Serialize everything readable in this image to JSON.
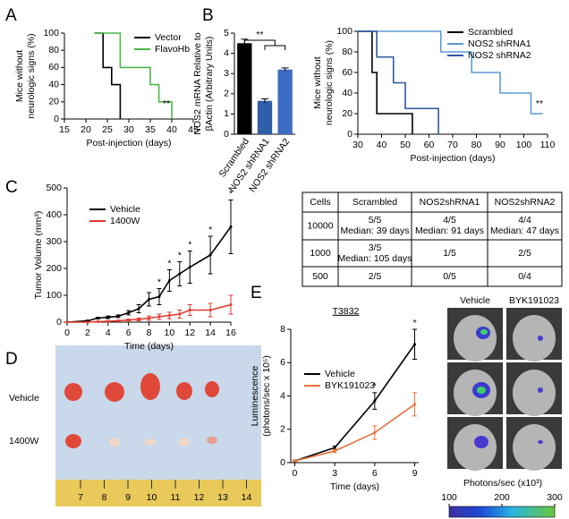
{
  "panel_labels": [
    "A",
    "B",
    "C",
    "D",
    "E"
  ],
  "chart_data": [
    {
      "type": "step",
      "ylabel": [
        "Mice without",
        "neurologic signs (%)"
      ],
      "xlabel": "Post-injection (days)",
      "xlim": [
        15,
        45
      ],
      "xticks": [
        15,
        20,
        25,
        30,
        35,
        40,
        45
      ],
      "ylim": [
        0,
        100
      ],
      "yticks": [
        0,
        20,
        40,
        60,
        80,
        100
      ],
      "series": [
        {
          "name": "Vector",
          "color": "#000000",
          "x": [
            22,
            24,
            26,
            28
          ],
          "values": [
            100,
            60,
            40,
            0
          ]
        },
        {
          "name": "FlavoHb",
          "color": "#4cb848",
          "x": [
            22,
            28,
            35,
            37,
            40
          ],
          "values": [
            100,
            60,
            40,
            20,
            0
          ]
        }
      ],
      "annotation": "**"
    },
    {
      "type": "bar",
      "ylabel": [
        "NOS2 mRNA Relative to",
        "βActin (Arbitrary Units)"
      ],
      "categories": [
        "Scrambled",
        "NOS2 shRNA1",
        "NOS2 shRNA2"
      ],
      "values": [
        4.5,
        1.65,
        3.2
      ],
      "errors": [
        0.2,
        0.1,
        0.08
      ],
      "colors": [
        "#000000",
        "#2f5ea8",
        "#3d6cc4"
      ],
      "ylim": [
        0,
        5
      ],
      "yticks": [
        0,
        1,
        2,
        3,
        4,
        5
      ],
      "annotation": "**"
    },
    {
      "type": "step",
      "ylabel": [
        "Mice without",
        "neurologic signs (%)"
      ],
      "xlabel": "Post-injection (days)",
      "xlim": [
        30,
        110
      ],
      "xticks": [
        30,
        40,
        50,
        60,
        70,
        80,
        90,
        100,
        110
      ],
      "ylim": [
        0,
        100
      ],
      "yticks": [
        0,
        20,
        40,
        60,
        80,
        100
      ],
      "series": [
        {
          "name": "Scrambled",
          "color": "#000000",
          "x": [
            30,
            36,
            38,
            53
          ],
          "values": [
            100,
            60,
            20,
            0
          ]
        },
        {
          "name": "NOS2 shRNA1",
          "color": "#5b9bd5",
          "x": [
            30,
            65,
            78,
            90,
            103,
            108
          ],
          "values": [
            100,
            80,
            60,
            40,
            20,
            20
          ]
        },
        {
          "name": "NOS2 shRNA2",
          "color": "#2e5aa0",
          "x": [
            30,
            38,
            45,
            50,
            64
          ],
          "values": [
            100,
            75,
            50,
            25,
            0
          ]
        }
      ],
      "annotation": "**"
    },
    {
      "type": "line",
      "ylabel": [
        "Tumor Volume (mm³)"
      ],
      "xlabel": "Time (days)",
      "xlim": [
        0,
        16
      ],
      "xticks": [
        0,
        2,
        4,
        6,
        8,
        10,
        12,
        14,
        16
      ],
      "ylim": [
        0,
        500
      ],
      "yticks": [
        0,
        100,
        200,
        300,
        400,
        500
      ],
      "x": [
        0,
        2,
        3,
        4,
        5,
        6,
        7,
        8,
        9,
        10,
        11,
        12,
        14,
        16
      ],
      "series": [
        {
          "name": "Vehicle",
          "color": "#000000",
          "values": [
            0,
            5,
            15,
            18,
            22,
            35,
            50,
            85,
            95,
            155,
            180,
            205,
            250,
            355
          ],
          "errors": [
            0,
            2,
            3,
            5,
            5,
            8,
            15,
            25,
            30,
            40,
            45,
            60,
            70,
            100
          ]
        },
        {
          "name": "1400W",
          "color": "#e0392b",
          "values": [
            0,
            0,
            2,
            3,
            5,
            8,
            10,
            15,
            20,
            25,
            30,
            45,
            45,
            65
          ],
          "errors": [
            0,
            0,
            1,
            2,
            2,
            3,
            5,
            8,
            10,
            12,
            15,
            20,
            25,
            35
          ]
        }
      ],
      "significant": [
        false,
        false,
        false,
        false,
        false,
        false,
        false,
        false,
        true,
        true,
        true,
        true,
        true,
        true
      ],
      "sig_label": "*"
    },
    {
      "type": "line",
      "title": "T3832",
      "ylabel": [
        "Luminescence",
        "(photons/sec x 10⁵)"
      ],
      "xlabel": "Time (days)",
      "xlim": [
        -0.3,
        9.3
      ],
      "xticks": [
        0,
        3,
        6,
        9
      ],
      "ylim": [
        0,
        8
      ],
      "yticks": [
        0,
        2,
        4,
        6,
        8
      ],
      "x": [
        0,
        3,
        6,
        9
      ],
      "series": [
        {
          "name": "Vehicle",
          "color": "#000000",
          "values": [
            0.1,
            0.9,
            3.7,
            7.1
          ],
          "errors": [
            0.05,
            0.1,
            0.5,
            0.9
          ]
        },
        {
          "name": "BYK191023",
          "color": "#e8703a",
          "values": [
            0.1,
            0.7,
            1.8,
            3.5
          ],
          "errors": [
            0.05,
            0.1,
            0.4,
            0.7
          ]
        }
      ],
      "significant": [
        false,
        false,
        true,
        true
      ],
      "sig_label": "*"
    }
  ],
  "table": {
    "header": [
      "Cells",
      "Scrambled",
      "NOS2shRNA1",
      "NOS2shRNA2"
    ],
    "rows": [
      [
        [
          "10000"
        ],
        [
          "5/5",
          "Median: 39 days"
        ],
        [
          "4/5",
          "Median: 91 days"
        ],
        [
          "4/4",
          "Median: 47 days"
        ]
      ],
      [
        [
          "1000"
        ],
        [
          "3/5",
          "Median: 105 days"
        ],
        [
          "1/5"
        ],
        [
          "2/5"
        ]
      ],
      [
        [
          "500"
        ],
        [
          "2/5"
        ],
        [
          "0/5"
        ],
        [
          "0/4"
        ]
      ]
    ]
  },
  "photo": {
    "row_labels": [
      "Vehicle",
      "1400W"
    ],
    "ruler_labels": [
      "7",
      "8",
      "9",
      "10",
      "11",
      "12",
      "13",
      "14"
    ]
  },
  "imaging": {
    "columns": [
      "Vehicle",
      "BYK191023"
    ],
    "colorbar_label": "Photons/sec (x10³)",
    "colorbar_lim": [
      100,
      300
    ],
    "colorbar_ticks": [
      100,
      200,
      300
    ]
  }
}
